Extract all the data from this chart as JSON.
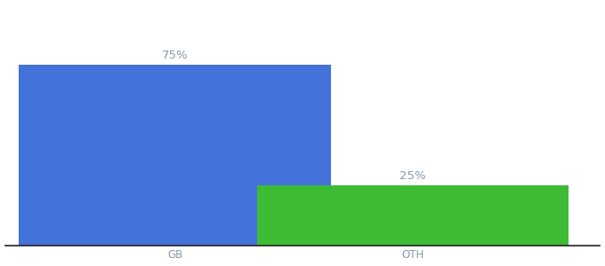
{
  "categories": [
    "GB",
    "OTH"
  ],
  "values": [
    75,
    25
  ],
  "bar_colors": [
    "#4472db",
    "#3dbb35"
  ],
  "value_labels": [
    "75%",
    "25%"
  ],
  "ylim": [
    0,
    100
  ],
  "background_color": "#ffffff",
  "label_color": "#8899aa",
  "label_fontsize": 9.5,
  "tick_fontsize": 8.5,
  "bar_width": 0.55,
  "x_positions": [
    0.3,
    0.72
  ],
  "xlim": [
    0.0,
    1.05
  ]
}
